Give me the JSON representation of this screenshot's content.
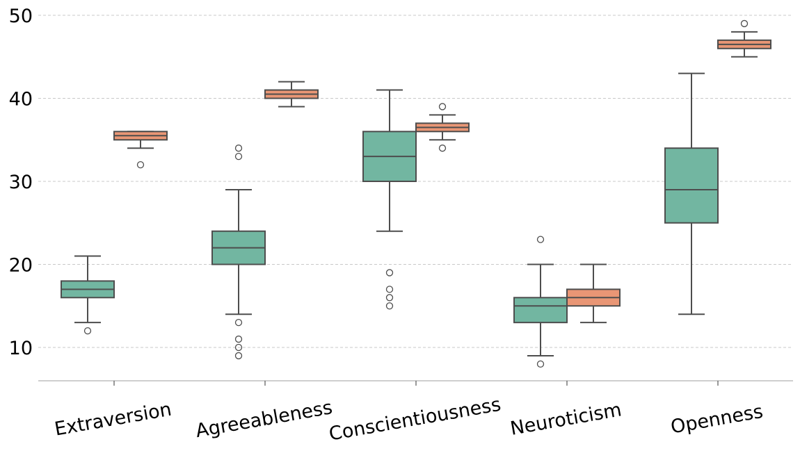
{
  "chart_data": {
    "type": "box",
    "title": "",
    "xlabel": "",
    "ylabel": "",
    "ylim": [
      6,
      52
    ],
    "yticks": [
      10,
      20,
      30,
      40,
      50
    ],
    "grid": "horizontal dashed",
    "categories": [
      "Extraversion",
      "Agreeableness",
      "Conscientiousness",
      "Neuroticism",
      "Openness"
    ],
    "series": [
      {
        "color": "#72b6a1",
        "boxes": [
          {
            "whislo": 13,
            "q1": 16,
            "med": 17,
            "q3": 18,
            "whishi": 21,
            "fliers": [
              12
            ]
          },
          {
            "whislo": 14,
            "q1": 20,
            "med": 22,
            "q3": 24,
            "whishi": 29,
            "fliers": [
              34,
              33,
              13,
              11,
              10,
              9
            ]
          },
          {
            "whislo": 24,
            "q1": 30,
            "med": 33,
            "q3": 36,
            "whishi": 41,
            "fliers": [
              19,
              17,
              16,
              15
            ]
          },
          {
            "whislo": 9,
            "q1": 13,
            "med": 15,
            "q3": 16,
            "whishi": 20,
            "fliers": [
              23,
              8
            ]
          },
          {
            "whislo": 14,
            "q1": 25,
            "med": 29,
            "q3": 34,
            "whishi": 43,
            "fliers": []
          }
        ]
      },
      {
        "color": "#e99675",
        "boxes": [
          {
            "whislo": 34,
            "q1": 35,
            "med": 35.5,
            "q3": 36,
            "whishi": 36,
            "fliers": [
              32
            ]
          },
          {
            "whislo": 39,
            "q1": 40,
            "med": 40.5,
            "q3": 41,
            "whishi": 42,
            "fliers": []
          },
          {
            "whislo": 35,
            "q1": 36,
            "med": 36.5,
            "q3": 37,
            "whishi": 38,
            "fliers": [
              39,
              34
            ]
          },
          {
            "whislo": 13,
            "q1": 15,
            "med": 16,
            "q3": 17,
            "whishi": 20,
            "fliers": []
          },
          {
            "whislo": 45,
            "q1": 46,
            "med": 46.5,
            "q3": 47,
            "whishi": 48,
            "fliers": [
              49
            ]
          }
        ]
      }
    ]
  }
}
